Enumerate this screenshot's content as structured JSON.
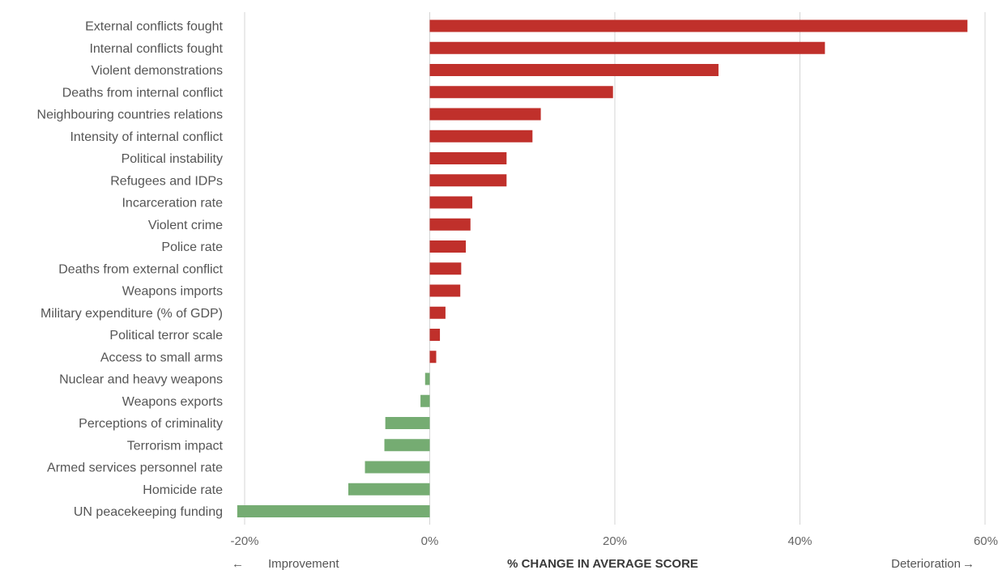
{
  "chart_data": {
    "type": "bar",
    "orientation": "horizontal",
    "title": "",
    "xlabel": "% CHANGE IN AVERAGE SCORE",
    "ylabel": "",
    "xlim": [
      -20,
      60
    ],
    "x_ticks": [
      "-20%",
      "0%",
      "20%",
      "40%",
      "60%"
    ],
    "x_tick_values": [
      -20,
      0,
      20,
      40,
      60
    ],
    "grid": true,
    "categories": [
      "External conflicts fought",
      "Internal conflicts fought",
      "Violent demonstrations",
      "Deaths from internal conflict",
      "Neighbouring countries relations",
      "Intensity of internal conflict",
      "Political instability",
      "Refugees and IDPs",
      "Incarceration rate",
      "Violent crime",
      "Police rate",
      "Deaths from external conflict",
      "Weapons imports",
      "Military expenditure (% of GDP)",
      "Political terror scale",
      "Access to small arms",
      "Nuclear and heavy weapons",
      "Weapons exports",
      "Perceptions of criminality",
      "Terrorism impact",
      "Armed services personnel rate",
      "Homicide rate",
      "UN peacekeeping funding"
    ],
    "values": [
      58.1,
      42.7,
      31.2,
      19.8,
      12.0,
      11.1,
      8.3,
      8.3,
      4.6,
      4.4,
      3.9,
      3.4,
      3.3,
      1.7,
      1.1,
      0.7,
      -0.5,
      -1.0,
      -4.8,
      -4.9,
      -7.0,
      -8.8,
      -20.8
    ],
    "colors": {
      "deterioration": "#c0302b",
      "improvement": "#75ac72",
      "gridline": "#d4d4d4"
    },
    "annotations": {
      "left": "Improvement",
      "right": "Deterioration",
      "left_arrow": "←",
      "right_arrow": "→"
    }
  }
}
